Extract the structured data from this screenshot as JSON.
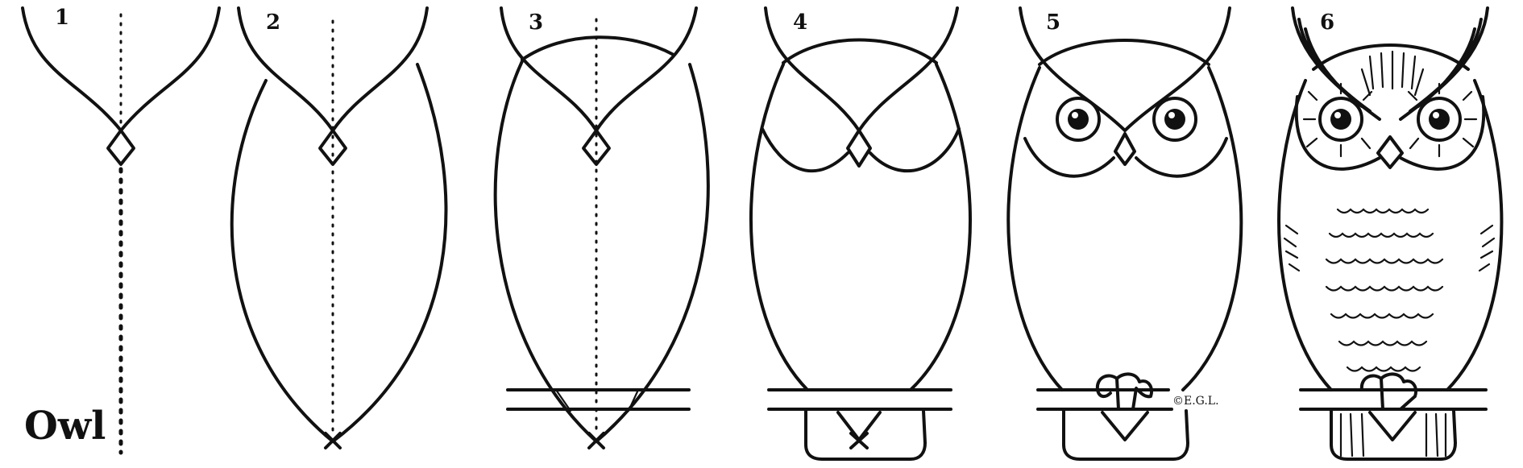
{
  "title": "Owl",
  "steps": [
    {
      "number": "1"
    },
    {
      "number": "2"
    },
    {
      "number": "3"
    },
    {
      "number": "4"
    },
    {
      "number": "5"
    },
    {
      "number": "6"
    }
  ],
  "signature": "©E.G.L."
}
